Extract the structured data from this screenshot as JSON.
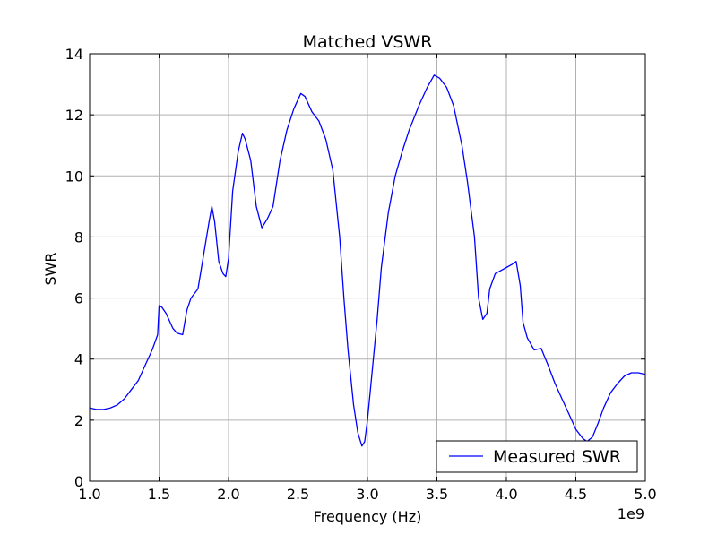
{
  "chart_data": {
    "type": "line",
    "title": "Matched VSWR",
    "xlabel": "Frequency (Hz)",
    "ylabel": "SWR",
    "x_offset_label": "1e9",
    "xlim": [
      1.0,
      5.0
    ],
    "ylim": [
      0,
      14
    ],
    "x_ticks": [
      1.0,
      1.5,
      2.0,
      2.5,
      3.0,
      3.5,
      4.0,
      4.5,
      5.0
    ],
    "x_tick_labels": [
      "1.0",
      "1.5",
      "2.0",
      "2.5",
      "3.0",
      "3.5",
      "4.0",
      "4.5",
      "5.0"
    ],
    "y_ticks": [
      0,
      2,
      4,
      6,
      8,
      10,
      12,
      14
    ],
    "y_tick_labels": [
      "0",
      "2",
      "4",
      "6",
      "8",
      "10",
      "12",
      "14"
    ],
    "grid": true,
    "legend_position": "lower-right",
    "series": [
      {
        "name": "Measured SWR",
        "color": "#0000ff",
        "x_unit": "GHz",
        "x": [
          1.0,
          1.05,
          1.1,
          1.15,
          1.2,
          1.25,
          1.3,
          1.35,
          1.4,
          1.45,
          1.49,
          1.5,
          1.52,
          1.55,
          1.6,
          1.63,
          1.67,
          1.7,
          1.73,
          1.78,
          1.82,
          1.86,
          1.88,
          1.9,
          1.93,
          1.96,
          1.98,
          2.0,
          2.03,
          2.07,
          2.1,
          2.12,
          2.16,
          2.2,
          2.24,
          2.28,
          2.32,
          2.37,
          2.42,
          2.47,
          2.52,
          2.55,
          2.6,
          2.65,
          2.7,
          2.75,
          2.8,
          2.83,
          2.86,
          2.9,
          2.93,
          2.96,
          2.98,
          3.0,
          3.03,
          3.07,
          3.1,
          3.15,
          3.2,
          3.25,
          3.3,
          3.37,
          3.43,
          3.48,
          3.52,
          3.57,
          3.62,
          3.68,
          3.72,
          3.77,
          3.8,
          3.83,
          3.86,
          3.88,
          3.92,
          3.96,
          4.0,
          4.04,
          4.07,
          4.1,
          4.12,
          4.15,
          4.2,
          4.25,
          4.3,
          4.35,
          4.4,
          4.45,
          4.5,
          4.55,
          4.58,
          4.62,
          4.66,
          4.7,
          4.75,
          4.8,
          4.85,
          4.9,
          4.95,
          5.0
        ],
        "y": [
          2.4,
          2.35,
          2.35,
          2.4,
          2.5,
          2.7,
          3.0,
          3.3,
          3.8,
          4.3,
          4.8,
          5.75,
          5.7,
          5.5,
          5.0,
          4.85,
          4.8,
          5.6,
          6.0,
          6.3,
          7.4,
          8.5,
          9.0,
          8.5,
          7.2,
          6.8,
          6.7,
          7.3,
          9.5,
          10.8,
          11.4,
          11.2,
          10.5,
          9.0,
          8.3,
          8.6,
          9.0,
          10.5,
          11.5,
          12.2,
          12.7,
          12.6,
          12.1,
          11.8,
          11.2,
          10.2,
          8.0,
          6.0,
          4.3,
          2.5,
          1.6,
          1.15,
          1.3,
          2.0,
          3.4,
          5.3,
          7.0,
          8.8,
          10.0,
          10.8,
          11.5,
          12.3,
          12.9,
          13.3,
          13.2,
          12.9,
          12.3,
          11.0,
          9.8,
          8.0,
          6.0,
          5.3,
          5.5,
          6.3,
          6.8,
          6.9,
          7.0,
          7.1,
          7.2,
          6.4,
          5.2,
          4.7,
          4.3,
          4.35,
          3.8,
          3.2,
          2.7,
          2.2,
          1.7,
          1.4,
          1.3,
          1.45,
          1.9,
          2.4,
          2.9,
          3.2,
          3.45,
          3.55,
          3.55,
          3.5
        ]
      }
    ]
  }
}
